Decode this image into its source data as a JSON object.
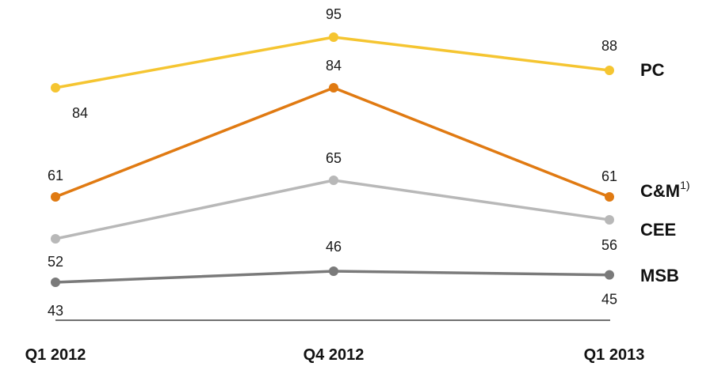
{
  "chart_data": {
    "type": "line",
    "categories": [
      "Q1 2012",
      "Q4 2012",
      "Q1 2013"
    ],
    "series": [
      {
        "name": "PC",
        "values": [
          84,
          95,
          88
        ],
        "color": "#F5C531"
      },
      {
        "name": "C&M",
        "superscript": "1)",
        "values": [
          61,
          84,
          61
        ],
        "color": "#E07A12"
      },
      {
        "name": "CEE",
        "values": [
          52,
          65,
          56
        ],
        "color": "#B8B8B8"
      },
      {
        "name": "MSB",
        "values": [
          43,
          46,
          45
        ],
        "color": "#7A7A7A"
      }
    ],
    "title": "",
    "xlabel": "",
    "ylabel": "",
    "grid": false,
    "legend": "right, inline labels at series ends"
  }
}
